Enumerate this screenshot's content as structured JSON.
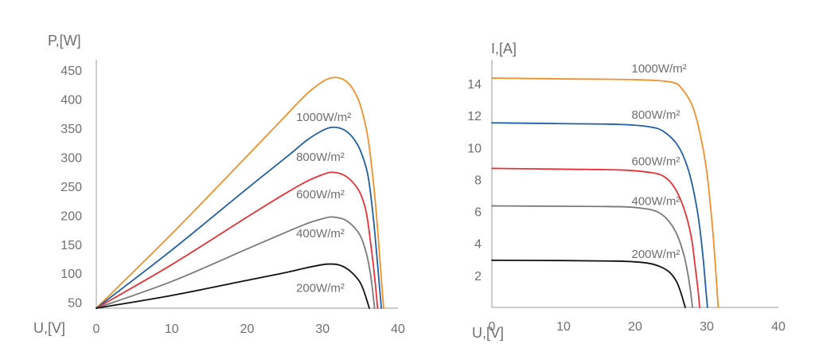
{
  "chart_data": [
    {
      "type": "line",
      "xlabel": "U,[V]",
      "ylabel": "P,[W]",
      "xlim": [
        0,
        40
      ],
      "ylim": [
        40,
        450
      ],
      "x_ticks": [
        "0",
        "10",
        "20",
        "30",
        "40"
      ],
      "x_tick_values": [
        0,
        10,
        20,
        30,
        40
      ],
      "y_ticks": [
        "50",
        "100",
        "150",
        "200",
        "250",
        "300",
        "350",
        "400",
        "450"
      ],
      "y_tick_values": [
        50,
        100,
        150,
        200,
        250,
        300,
        350,
        400,
        450
      ],
      "series": [
        {
          "color": "#f0902a",
          "points": [
            [
              0,
              40
            ],
            [
              10,
              168
            ],
            [
              20,
              302
            ],
            [
              25,
              370
            ],
            [
              28,
              410
            ],
            [
              30,
              430
            ],
            [
              31,
              436
            ],
            [
              32,
              437
            ],
            [
              33,
              432
            ],
            [
              34,
              418
            ],
            [
              35,
              390
            ],
            [
              36,
              335
            ],
            [
              36.8,
              250
            ],
            [
              37.4,
              160
            ],
            [
              37.8,
              90
            ],
            [
              38.1,
              40
            ]
          ]
        },
        {
          "color": "#1f5fa6",
          "points": [
            [
              0,
              40
            ],
            [
              10,
              140
            ],
            [
              20,
              246
            ],
            [
              25,
              298
            ],
            [
              28,
              330
            ],
            [
              30,
              346
            ],
            [
              31,
              351
            ],
            [
              32,
              351
            ],
            [
              33,
              346
            ],
            [
              34,
              334
            ],
            [
              35,
              312
            ],
            [
              36,
              270
            ],
            [
              36.7,
              200
            ],
            [
              37.2,
              130
            ],
            [
              37.6,
              70
            ],
            [
              37.8,
              40
            ]
          ]
        },
        {
          "color": "#e63237",
          "points": [
            [
              0,
              40
            ],
            [
              10,
              115
            ],
            [
              20,
              197
            ],
            [
              25,
              237
            ],
            [
              28,
              259
            ],
            [
              30,
              270
            ],
            [
              31,
              274
            ],
            [
              32,
              273
            ],
            [
              33,
              268
            ],
            [
              34,
              257
            ],
            [
              35,
              238
            ],
            [
              35.8,
              205
            ],
            [
              36.4,
              150
            ],
            [
              36.9,
              95
            ],
            [
              37.3,
              40
            ]
          ]
        },
        {
          "color": "#7a7a7a",
          "points": [
            [
              0,
              40
            ],
            [
              10,
              86
            ],
            [
              20,
              142
            ],
            [
              25,
              170
            ],
            [
              28,
              186
            ],
            [
              30,
              194
            ],
            [
              31,
              197
            ],
            [
              32,
              196
            ],
            [
              33,
              192
            ],
            [
              34,
              182
            ],
            [
              35,
              165
            ],
            [
              35.8,
              135
            ],
            [
              36.4,
              95
            ],
            [
              36.9,
              40
            ]
          ]
        },
        {
          "color": "#111111",
          "points": [
            [
              0,
              40
            ],
            [
              10,
              62
            ],
            [
              20,
              88
            ],
            [
              25,
              101
            ],
            [
              28,
              110
            ],
            [
              30,
              115
            ],
            [
              31,
              116
            ],
            [
              32,
              115
            ],
            [
              33,
              110
            ],
            [
              34,
              100
            ],
            [
              35,
              84
            ],
            [
              35.6,
              65
            ],
            [
              36.2,
              40
            ]
          ]
        }
      ],
      "annotations": [
        {
          "text": "1000W/m²",
          "x": 26.5,
          "y": 362
        },
        {
          "text": "800W/m²",
          "x": 26.5,
          "y": 294
        },
        {
          "text": "600W/m²",
          "x": 26.5,
          "y": 229
        },
        {
          "text": "400W/m²",
          "x": 26.5,
          "y": 162
        },
        {
          "text": "200W/m²",
          "x": 26.5,
          "y": 68
        }
      ]
    },
    {
      "type": "line",
      "xlabel": "U,[V]",
      "ylabel": "I,[A]",
      "xlim": [
        0,
        40
      ],
      "ylim": [
        0,
        15
      ],
      "x_ticks": [
        "0",
        "10",
        "20",
        "30",
        "40"
      ],
      "x_tick_values": [
        0,
        10,
        20,
        30,
        40
      ],
      "y_ticks": [
        "2",
        "4",
        "6",
        "8",
        "10",
        "12",
        "14"
      ],
      "y_tick_values": [
        2,
        4,
        6,
        8,
        10,
        12,
        14
      ],
      "series": [
        {
          "color": "#f0902a",
          "points": [
            [
              0,
              14.35
            ],
            [
              10,
              14.3
            ],
            [
              20,
              14.25
            ],
            [
              25,
              14.1
            ],
            [
              26.5,
              13.7
            ],
            [
              28,
              12.6
            ],
            [
              29,
              11
            ],
            [
              30,
              8.5
            ],
            [
              30.8,
              5
            ],
            [
              31.3,
              2
            ],
            [
              31.6,
              0
            ]
          ]
        },
        {
          "color": "#1f5fa6",
          "points": [
            [
              0,
              11.55
            ],
            [
              10,
              11.5
            ],
            [
              18,
              11.45
            ],
            [
              22,
              11.3
            ],
            [
              24,
              11
            ],
            [
              26,
              10.1
            ],
            [
              27.5,
              8.5
            ],
            [
              28.7,
              6
            ],
            [
              29.4,
              3.5
            ],
            [
              29.9,
              1
            ],
            [
              30.1,
              0
            ]
          ]
        },
        {
          "color": "#e63237",
          "points": [
            [
              0,
              8.7
            ],
            [
              10,
              8.65
            ],
            [
              18,
              8.6
            ],
            [
              22,
              8.45
            ],
            [
              24,
              8.2
            ],
            [
              25.5,
              7.5
            ],
            [
              26.8,
              6.2
            ],
            [
              27.8,
              4.5
            ],
            [
              28.4,
              2.5
            ],
            [
              28.8,
              1
            ],
            [
              29,
              0
            ]
          ]
        },
        {
          "color": "#7a7a7a",
          "points": [
            [
              0,
              6.35
            ],
            [
              10,
              6.33
            ],
            [
              18,
              6.3
            ],
            [
              21,
              6.2
            ],
            [
              23,
              6
            ],
            [
              24.5,
              5.5
            ],
            [
              25.8,
              4.6
            ],
            [
              26.8,
              3.3
            ],
            [
              27.4,
              2
            ],
            [
              27.8,
              0.8
            ],
            [
              28,
              0
            ]
          ]
        },
        {
          "color": "#111111",
          "points": [
            [
              0,
              2.95
            ],
            [
              10,
              2.93
            ],
            [
              17,
              2.9
            ],
            [
              20,
              2.85
            ],
            [
              22,
              2.75
            ],
            [
              23.5,
              2.55
            ],
            [
              24.8,
              2.2
            ],
            [
              25.8,
              1.6
            ],
            [
              26.4,
              0.9
            ],
            [
              26.8,
              0.3
            ],
            [
              27,
              0
            ]
          ]
        }
      ],
      "annotations": [
        {
          "text": "1000W/m²",
          "x": 19.5,
          "y": 14.7
        },
        {
          "text": "800W/m²",
          "x": 19.5,
          "y": 11.8
        },
        {
          "text": "600W/m²",
          "x": 19.5,
          "y": 8.9
        },
        {
          "text": "400W/m²",
          "x": 19.5,
          "y": 6.4
        },
        {
          "text": "200W/m²",
          "x": 19.5,
          "y": 3.1
        }
      ]
    }
  ]
}
